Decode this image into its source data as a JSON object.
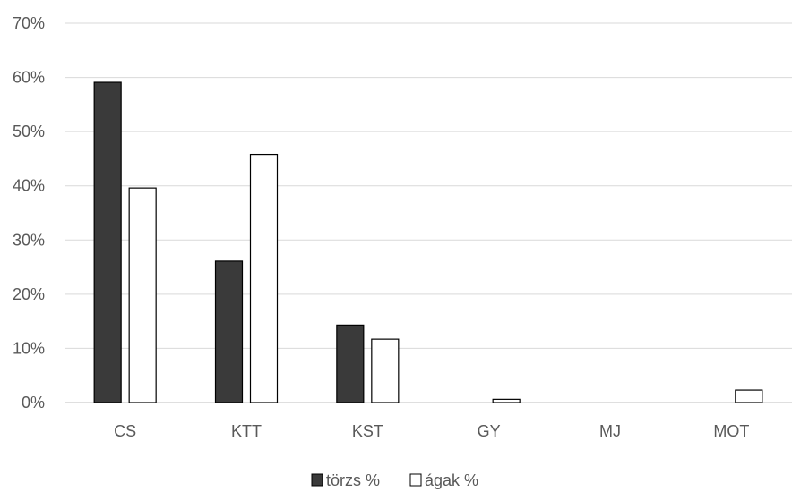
{
  "chart_data": {
    "type": "bar",
    "title": "",
    "xlabel": "",
    "ylabel": "",
    "categories": [
      "CS",
      "KTT",
      "KST",
      "GY",
      "MJ",
      "MOT"
    ],
    "series": [
      {
        "name": "törzs %",
        "values": [
          59.1,
          26.1,
          14.3,
          0,
          0,
          0
        ],
        "color": "#3a3a3a"
      },
      {
        "name": "ágak %",
        "values": [
          39.6,
          45.8,
          11.7,
          0.6,
          0,
          2.3
        ],
        "color": "#ffffff"
      }
    ],
    "ylim": [
      0,
      70
    ],
    "yticks": [
      "0%",
      "10%",
      "20%",
      "30%",
      "40%",
      "50%",
      "60%",
      "70%"
    ],
    "grid": true,
    "legend_position": "bottom",
    "colors": {
      "grid": "#d9d9d9",
      "axis": "#bfbfbf",
      "text": "#595959",
      "bar_stroke": "#000000"
    }
  }
}
